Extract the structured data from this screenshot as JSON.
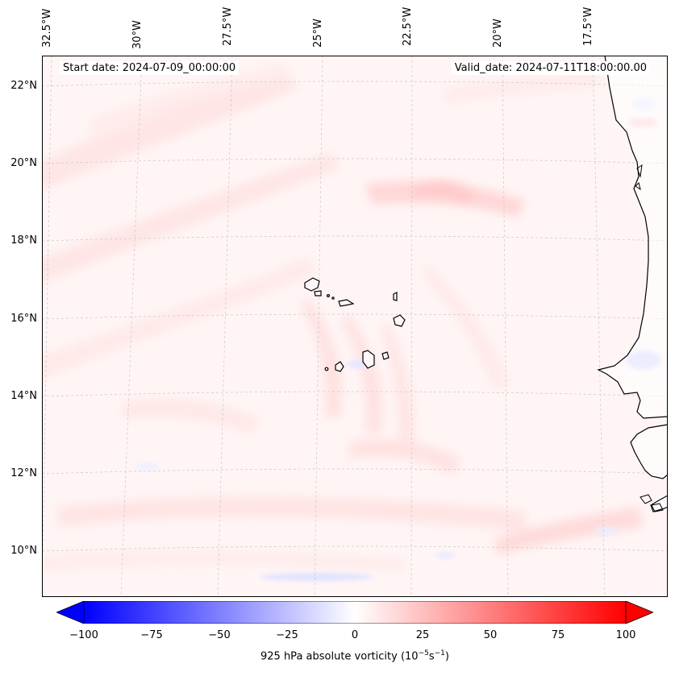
{
  "map": {
    "start_date": "Start date: 2024-07-09_00:00:00",
    "valid_date": "Valid_date: 2024-07-11T18:00:00.00",
    "lon_labels": [
      "32.5°W",
      "30°W",
      "27.5°W",
      "25°W",
      "22.5°W",
      "20°W",
      "17.5°W"
    ],
    "lat_labels": [
      "22°N",
      "20°N",
      "18°N",
      "16°N",
      "14°N",
      "12°N",
      "10°N"
    ],
    "field_colors": {
      "background": "#fff5f5",
      "weak_positive": "#ffe4e4",
      "moderate_positive": "#ffcfcf",
      "weak_negative": "#eef0ff",
      "moderate_negative": "#d8dcff",
      "coastline": "#000000",
      "grid": "#c8c8c8"
    }
  },
  "colorbar": {
    "ticks": [
      "−100",
      "−75",
      "−50",
      "−25",
      "0",
      "25",
      "50",
      "75",
      "100"
    ],
    "label_prefix": "925 hPa absolute vorticity (10",
    "label_exp1": "−5",
    "label_mid": "s",
    "label_exp2": "−1",
    "label_suffix": ")",
    "min_color": "#0000ff",
    "mid_color": "#ffffff",
    "max_color": "#ff0000"
  }
}
